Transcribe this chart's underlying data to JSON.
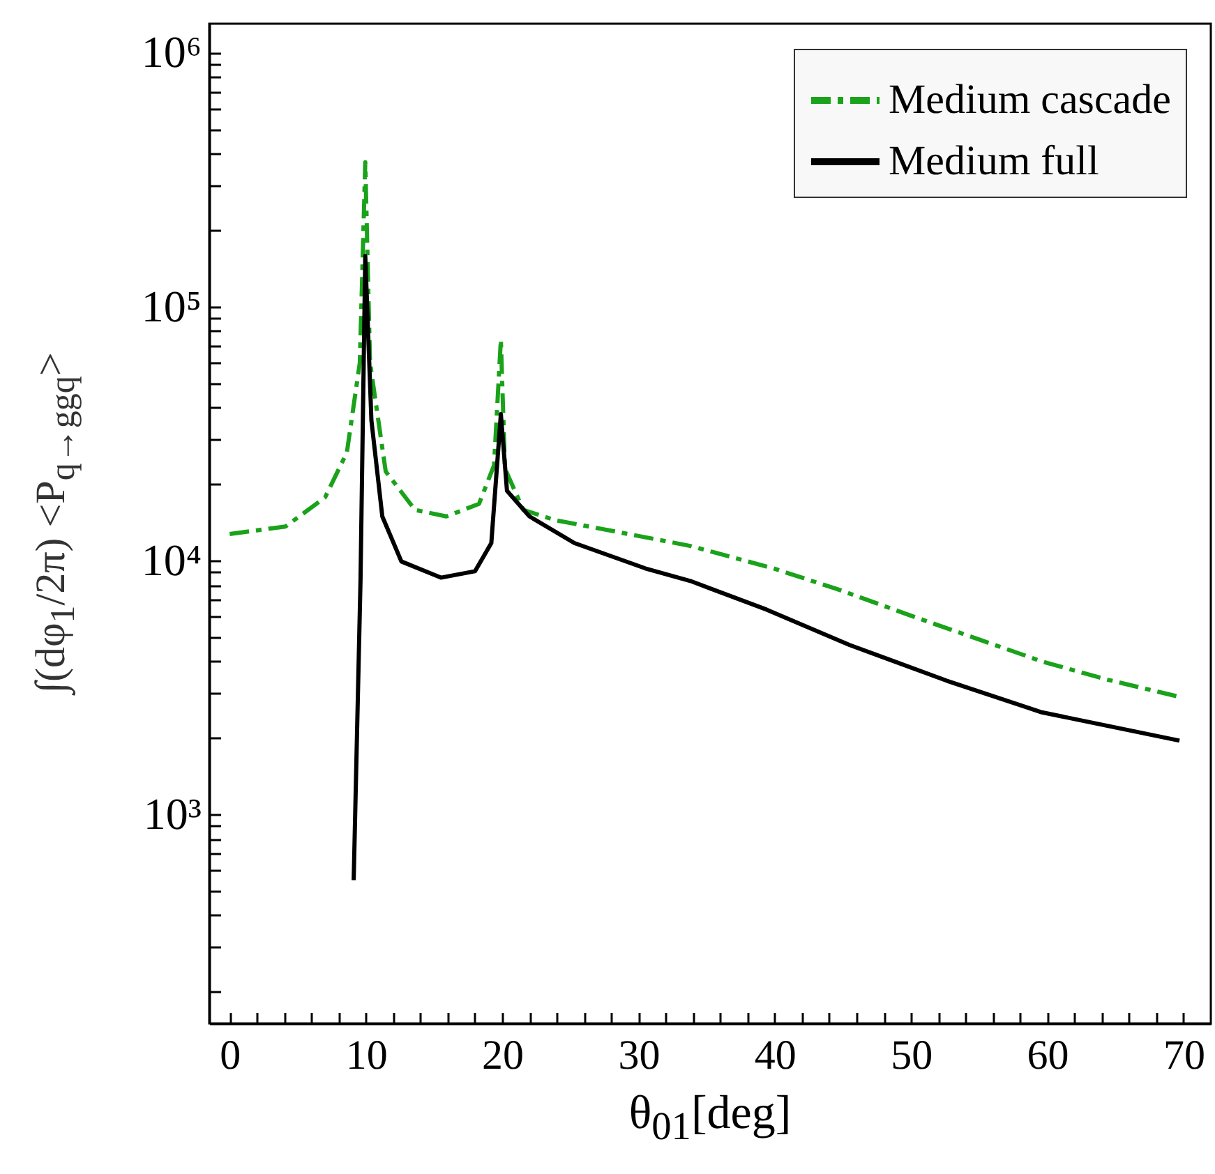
{
  "chart_data": {
    "type": "line",
    "xlabel": "θ$_{01}$[deg]",
    "ylabel": "∫(dφ$_{1}$/2π) <P$_{q→ggq}$>",
    "xlim": [
      -1.5,
      72
    ],
    "xticks": [
      0,
      {
        "value": 2,
        "label": null
      },
      {
        "value": 4,
        "label": null
      },
      {
        "value": 6,
        "label": null
      },
      {
        "value": 8,
        "label": null
      },
      10,
      {
        "value": 12,
        "label": null
      },
      {
        "value": 14,
        "label": null
      },
      {
        "value": 16,
        "label": null
      },
      {
        "value": 18,
        "label": null
      },
      20,
      {
        "value": 22,
        "label": null
      },
      {
        "value": 24,
        "label": null
      },
      {
        "value": 26,
        "label": null
      },
      {
        "value": 28,
        "label": null
      },
      30,
      {
        "value": 32,
        "label": null
      },
      {
        "value": 34,
        "label": null
      },
      {
        "value": 36,
        "label": null
      },
      {
        "value": 38,
        "label": null
      },
      40,
      {
        "value": 42,
        "label": null
      },
      {
        "value": 44,
        "label": null
      },
      {
        "value": 46,
        "label": null
      },
      {
        "value": 48,
        "label": null
      },
      50,
      {
        "value": 52,
        "label": null
      },
      {
        "value": 54,
        "label": null
      },
      {
        "value": 56,
        "label": null
      },
      {
        "value": 58,
        "label": null
      },
      60,
      {
        "value": 62,
        "label": null
      },
      {
        "value": 64,
        "label": null
      },
      {
        "value": 66,
        "label": null
      },
      {
        "value": 68,
        "label": null
      },
      70
    ],
    "ylim": [
      150,
      1300000
    ],
    "log": true,
    "yticks": [
      {
        "value": 200,
        "label": null
      },
      {
        "value": 300,
        "label": null
      },
      {
        "value": 400,
        "label": null
      },
      {
        "value": 500,
        "label": null
      },
      {
        "value": 600,
        "label": null
      },
      {
        "value": 700,
        "label": null
      },
      {
        "value": 800,
        "label": null
      },
      {
        "value": 900,
        "label": null
      },
      {
        "value": 1000,
        "label": "10³"
      },
      {
        "value": 2000,
        "label": null
      },
      {
        "value": 3000,
        "label": null
      },
      {
        "value": 4000,
        "label": null
      },
      {
        "value": 5000,
        "label": null
      },
      {
        "value": 6000,
        "label": null
      },
      {
        "value": 7000,
        "label": null
      },
      {
        "value": 8000,
        "label": null
      },
      {
        "value": 9000,
        "label": null
      },
      {
        "value": 10000,
        "label": "10⁴"
      },
      {
        "value": 20000,
        "label": null
      },
      {
        "value": 30000,
        "label": null
      },
      {
        "value": 40000,
        "label": null
      },
      {
        "value": 50000,
        "label": null
      },
      {
        "value": 60000,
        "label": null
      },
      {
        "value": 70000,
        "label": null
      },
      {
        "value": 80000,
        "label": null
      },
      {
        "value": 90000,
        "label": null
      },
      {
        "value": 100000,
        "label": "10⁵"
      },
      {
        "value": 200000,
        "label": null
      },
      {
        "value": 300000,
        "label": null
      },
      {
        "value": 400000,
        "label": null
      },
      {
        "value": 500000,
        "label": null
      },
      {
        "value": 600000,
        "label": null
      },
      {
        "value": 700000,
        "label": null
      },
      {
        "value": 800000,
        "label": null
      },
      {
        "value": 900000,
        "label": null
      },
      {
        "value": 1000000,
        "label": "10⁶"
      }
    ],
    "grid": false,
    "legend": "top right",
    "marker": "none",
    "series": [
      {
        "name": "Medium cascade",
        "color": "#1aa21a",
        "line_style": "dashed",
        "x": [
          0,
          4.1,
          7,
          8.6,
          9.55,
          9.95,
          10.3,
          11.45,
          13.6,
          15.9,
          18.3,
          19.4,
          19.9,
          20.2,
          21.55,
          23.9,
          28.6,
          33.8,
          39.9,
          44.6,
          50.2,
          54.9,
          59.6,
          64.3,
          69.7
        ],
        "values": [
          12700,
          13600,
          17700,
          26600,
          60000,
          370000,
          60000,
          22400,
          15800,
          14900,
          16700,
          23700,
          74000,
          23000,
          15800,
          14400,
          12900,
          11400,
          9300,
          7700,
          6000,
          4900,
          4000,
          3400,
          2900
        ]
      },
      {
        "name": "Medium full",
        "color": "#000000",
        "line_style": "solid",
        "x": [
          9.1,
          9.6,
          9.95,
          10.4,
          11.2,
          12.6,
          15.5,
          18,
          19.2,
          19.9,
          20.35,
          22,
          25.3,
          30.5,
          33.8,
          39.4,
          45.5,
          52.6,
          59.6,
          69.7
        ],
        "values": [
          550,
          8300,
          158000,
          35600,
          14900,
          9900,
          8550,
          9060,
          11700,
          37700,
          18800,
          14900,
          11700,
          9300,
          8300,
          6400,
          4640,
          3360,
          2520,
          1950
        ]
      }
    ]
  }
}
